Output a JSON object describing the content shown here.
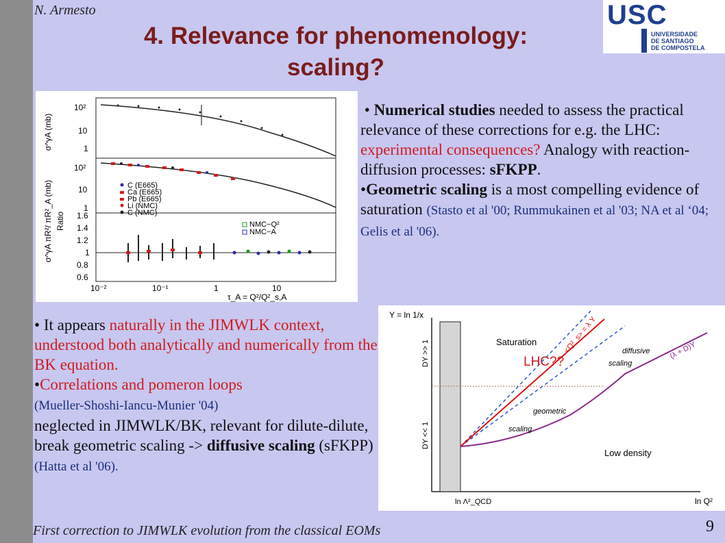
{
  "header": {
    "author": "N. Armesto",
    "title_line1": "4. Relevance for phenomenology:",
    "title_line2": "scaling?"
  },
  "logo": {
    "name": "USC",
    "sub1": "UNIVERSIDADE",
    "sub2": "DE SANTIAGO",
    "sub3": "DE COMPOSTELA"
  },
  "right_text": {
    "b1_bold": "Numerical studies",
    "b1_rest": " needed to assess the practical relevance of these corrections for e.g. the LHC: ",
    "b1_red": "experimental consequences?",
    "b1_rest2": " Analogy with reaction-diffusion processes: ",
    "b1_bold2": "sFKPP",
    "b1_end": ".",
    "b2_bold": "Geometric scaling",
    "b2_rest": " is a most compelling evidence of saturation ",
    "b2_refs": "(Stasto et al '00; Rummukainen et al '03; NA et al ‘04; Gelis et al '06)."
  },
  "left_text": {
    "b1_start": "It appears ",
    "b1_red": "naturally in the JIMWLK context, understood both analytically and numerically from the BK equation.",
    "b2_red": "Correlations and pomeron loops",
    "b2_ref": "(Mueller-Shoshi-Iancu-Munier '04)",
    "b2_rest": "neglected in JIMWLK/BK, relevant for dilute-dilute, break geometric scaling -> ",
    "b2_bold": "diffusive scaling",
    "b2_rest2": " (sFKPP)",
    "b2_ref2": "(Hatta et al '06)."
  },
  "figure1": {
    "panel1_ylabel": "σ^γA (mb)",
    "panel1_ticks": [
      "10²",
      "10",
      "1"
    ],
    "panel2_ylabel": "σ^γA πR²/ πR²_A (mb)",
    "panel2_ticks": [
      "10²",
      "10",
      "1"
    ],
    "panel3_ylabel": "Ratio",
    "panel3_ticks": [
      "1.6",
      "1.4",
      "1.2",
      "1",
      "0.8",
      "0.6"
    ],
    "legend1": [
      "C (E665)",
      "Ca (E665)",
      "Pb (E665)",
      "Li (NMC)",
      "C (NMC)"
    ],
    "legend2": [
      "NMC−Q²",
      "NMC−A"
    ],
    "x_ticks": [
      "10⁻²",
      "10⁻¹",
      "1",
      "10"
    ],
    "x_label": "τ_A = Q²/Q²_s,A"
  },
  "figure2": {
    "y_axis": "Y = ln 1/x",
    "x_axis": "ln Q²",
    "x_origin": "ln Λ²_QCD",
    "dy_top": "DY >> 1",
    "dy_bottom": "DY << 1",
    "region_saturation": "Saturation",
    "region_low_density": "Low density",
    "diffusive": "diffusive",
    "scaling1": "scaling",
    "geometric": "geometric",
    "scaling2": "scaling",
    "lhc": "LHC??",
    "formula1": "<Q²_s> = λ Y",
    "formula2": "(λ + D)Y"
  },
  "footer": {
    "text": "First correction to JIMWLK evolution from the classical EOMs",
    "page": "9"
  }
}
